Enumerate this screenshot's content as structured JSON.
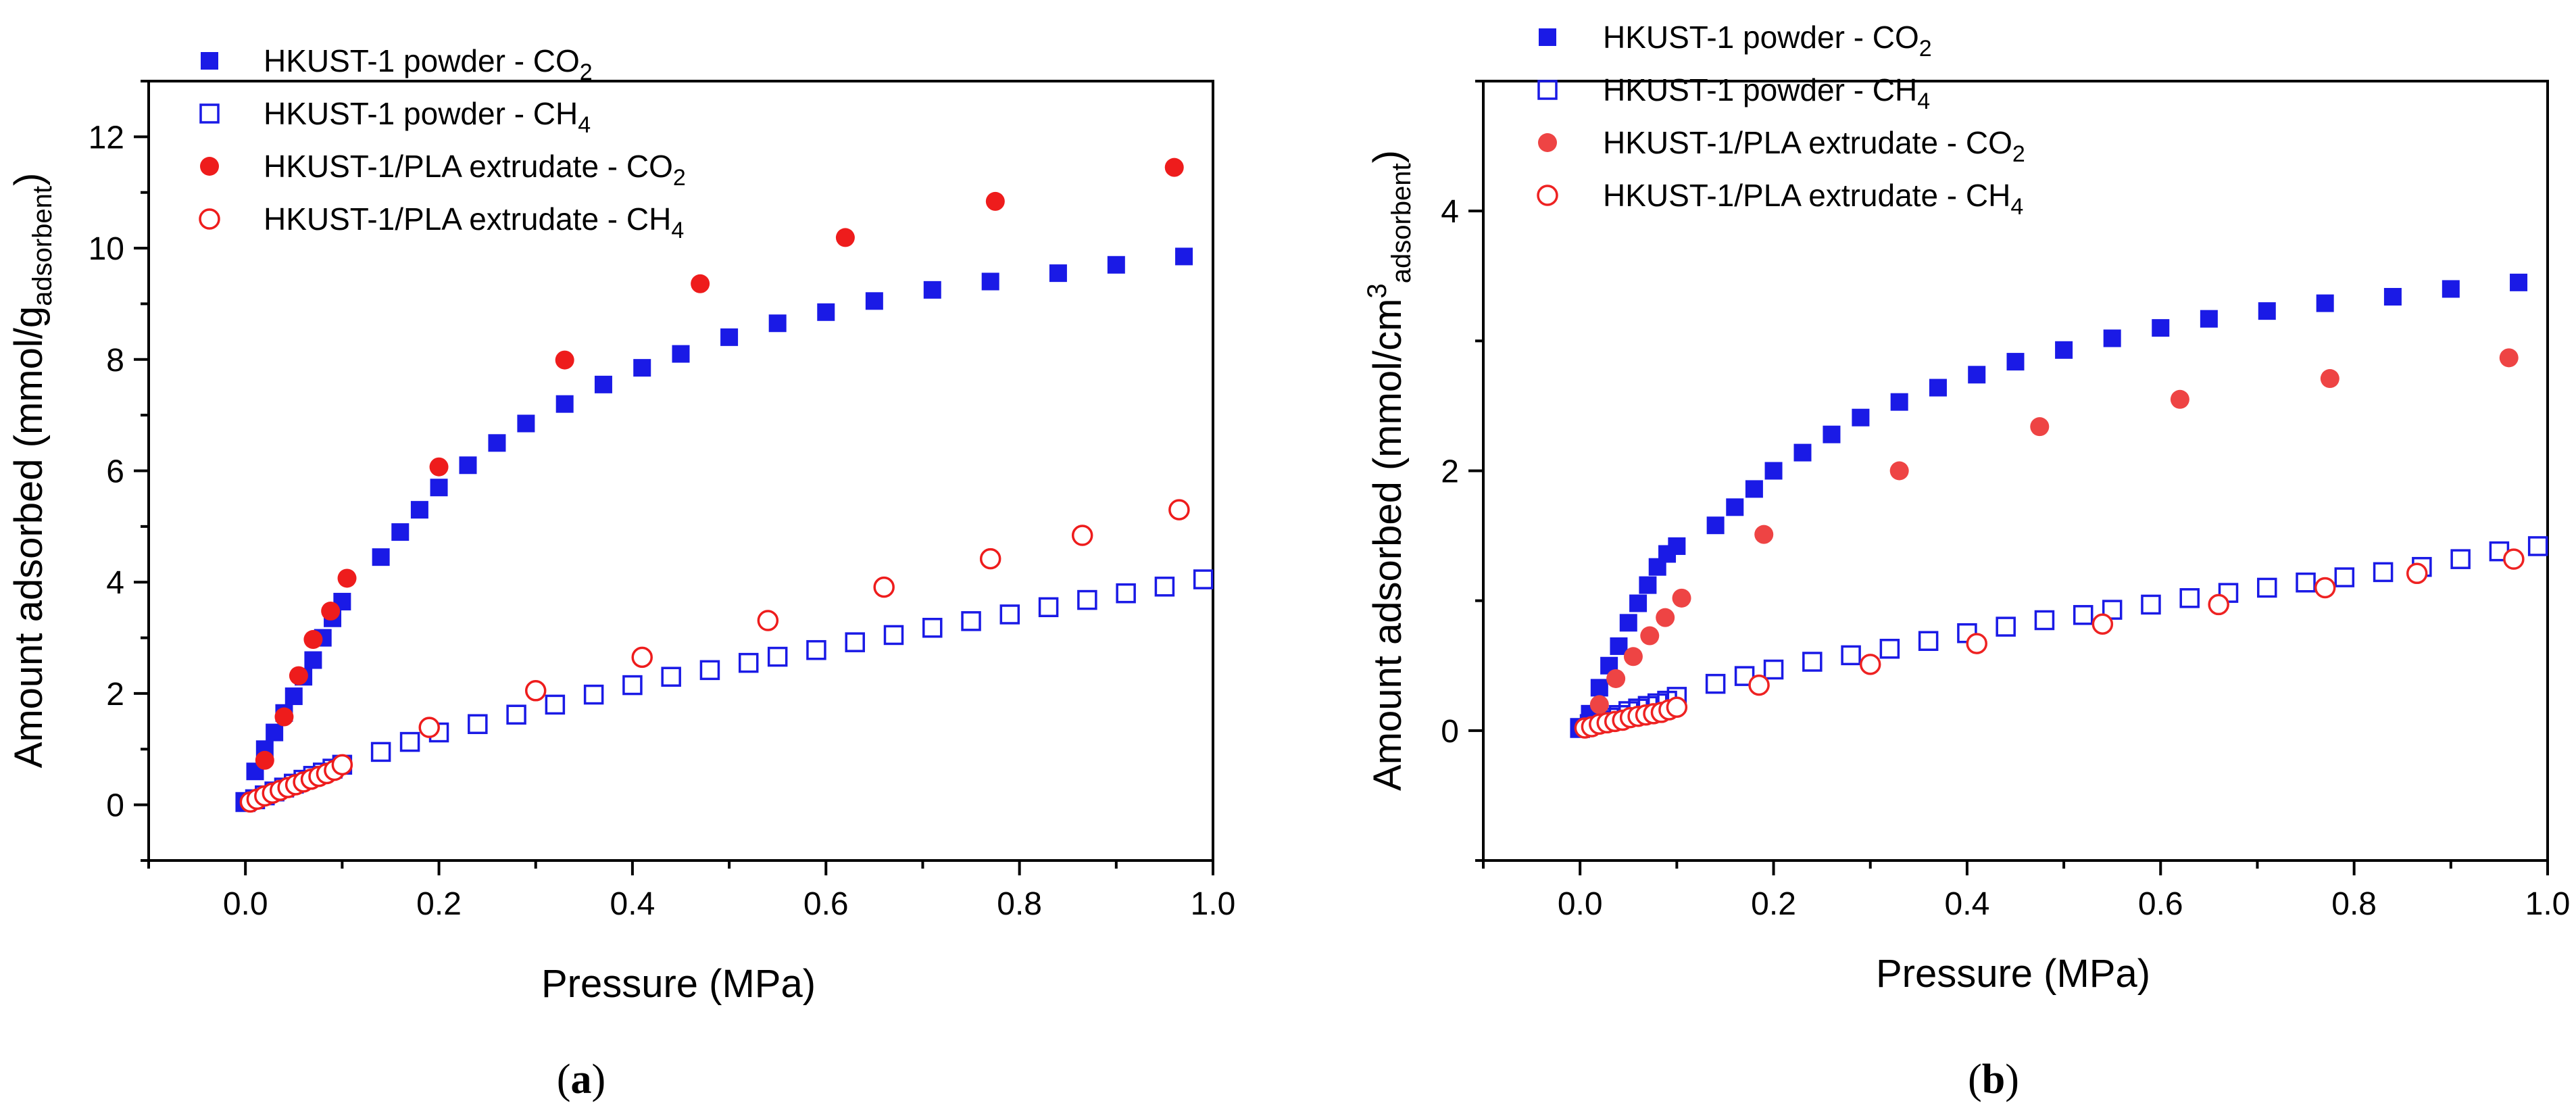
{
  "chart_data": [
    {
      "type": "scatter",
      "panel": "a",
      "xlabel": "Pressure (MPa)",
      "ylabel": {
        "main": "Amount adsorbed (mmol/g",
        "sub": "adsorbent",
        "tail": ")"
      },
      "xlim": [
        -0.1,
        1.0
      ],
      "ylim": [
        -1,
        13
      ],
      "xticks": [
        "0.0",
        "0.2",
        "0.4",
        "0.6",
        "0.8",
        "1.0"
      ],
      "yticks": [
        "0",
        "2",
        "4",
        "6",
        "8",
        "10",
        "12"
      ],
      "grid": false,
      "legend_position": "top-left",
      "series": [
        {
          "name": "HKUST-1 powder - CO",
          "name_sub": "2",
          "marker": "square",
          "fill": "filled",
          "color": "#1a1ae6",
          "x": [
            0.0,
            0.01,
            0.02,
            0.03,
            0.04,
            0.05,
            0.06,
            0.07,
            0.08,
            0.09,
            0.1,
            0.14,
            0.16,
            0.18,
            0.2,
            0.23,
            0.26,
            0.29,
            0.33,
            0.37,
            0.41,
            0.45,
            0.5,
            0.55,
            0.6,
            0.65,
            0.71,
            0.77,
            0.84,
            0.9,
            0.97
          ],
          "y": [
            0.05,
            0.6,
            1.0,
            1.3,
            1.65,
            1.95,
            2.3,
            2.6,
            3.0,
            3.35,
            3.65,
            4.45,
            4.9,
            5.3,
            5.7,
            6.1,
            6.5,
            6.85,
            7.2,
            7.55,
            7.85,
            8.1,
            8.4,
            8.65,
            8.85,
            9.05,
            9.25,
            9.4,
            9.55,
            9.7,
            9.85
          ]
        },
        {
          "name": "HKUST-1 powder - CH",
          "name_sub": "4",
          "marker": "square",
          "fill": "open",
          "color": "#1a1ae6",
          "x": [
            0.0,
            0.01,
            0.02,
            0.03,
            0.04,
            0.05,
            0.06,
            0.07,
            0.08,
            0.09,
            0.1,
            0.14,
            0.17,
            0.2,
            0.24,
            0.28,
            0.32,
            0.36,
            0.4,
            0.44,
            0.48,
            0.52,
            0.55,
            0.59,
            0.63,
            0.67,
            0.71,
            0.75,
            0.79,
            0.83,
            0.87,
            0.91,
            0.95,
            0.99
          ],
          "y": [
            0.05,
            0.1,
            0.17,
            0.24,
            0.31,
            0.38,
            0.45,
            0.52,
            0.58,
            0.65,
            0.72,
            0.95,
            1.13,
            1.3,
            1.45,
            1.62,
            1.8,
            1.98,
            2.15,
            2.3,
            2.42,
            2.55,
            2.66,
            2.78,
            2.92,
            3.05,
            3.18,
            3.3,
            3.42,
            3.55,
            3.68,
            3.8,
            3.92,
            4.05
          ]
        },
        {
          "name": "HKUST-1/PLA extrudate - CO",
          "name_sub": "2",
          "marker": "circle",
          "fill": "filled",
          "color": "#ee1c1c",
          "x": [
            0.02,
            0.04,
            0.055,
            0.07,
            0.088,
            0.105,
            0.2,
            0.33,
            0.47,
            0.62,
            0.775,
            0.96
          ],
          "y": [
            0.8,
            1.58,
            2.32,
            2.97,
            3.48,
            4.07,
            6.07,
            7.99,
            9.36,
            10.19,
            10.84,
            11.45
          ]
        },
        {
          "name": "HKUST-1/PLA extrudate - CH",
          "name_sub": "4",
          "marker": "circle",
          "fill": "open",
          "color": "#ee1c1c",
          "x": [
            0.005,
            0.012,
            0.02,
            0.028,
            0.036,
            0.044,
            0.052,
            0.06,
            0.068,
            0.076,
            0.084,
            0.092,
            0.1,
            0.19,
            0.3,
            0.41,
            0.54,
            0.66,
            0.77,
            0.865,
            0.965
          ],
          "y": [
            0.05,
            0.1,
            0.16,
            0.21,
            0.26,
            0.31,
            0.36,
            0.41,
            0.46,
            0.51,
            0.56,
            0.62,
            0.72,
            1.39,
            2.05,
            2.65,
            3.31,
            3.91,
            4.42,
            4.84,
            5.3
          ]
        }
      ]
    },
    {
      "type": "scatter",
      "panel": "b",
      "xlabel": "Pressure (MPa)",
      "ylabel": {
        "main": "Amount adsorbed (mmol/cm",
        "sup": "3",
        "sub": "adsorbent",
        "tail": ")"
      },
      "xlim": [
        -0.1,
        1.0
      ],
      "ylim": [
        -1,
        5
      ],
      "xticks": [
        "0.0",
        "0.2",
        "0.4",
        "0.6",
        "0.8",
        "1.0"
      ],
      "yticks": [
        "0",
        "2",
        "4"
      ],
      "grid": false,
      "legend_position": "top-left",
      "series": [
        {
          "name": "HKUST-1 powder - CO",
          "name_sub": "2",
          "marker": "square",
          "fill": "filled",
          "color": "#1a1ae6",
          "x": [
            0.0,
            0.01,
            0.02,
            0.03,
            0.04,
            0.05,
            0.06,
            0.07,
            0.08,
            0.09,
            0.1,
            0.14,
            0.16,
            0.18,
            0.2,
            0.23,
            0.26,
            0.29,
            0.33,
            0.37,
            0.41,
            0.45,
            0.5,
            0.55,
            0.6,
            0.65,
            0.71,
            0.77,
            0.84,
            0.9,
            0.97
          ],
          "y": [
            0.02,
            0.13,
            0.33,
            0.5,
            0.65,
            0.83,
            0.98,
            1.12,
            1.26,
            1.36,
            1.42,
            1.58,
            1.72,
            1.86,
            2.0,
            2.14,
            2.28,
            2.41,
            2.53,
            2.64,
            2.74,
            2.84,
            2.93,
            3.02,
            3.1,
            3.17,
            3.23,
            3.29,
            3.34,
            3.4,
            3.45
          ]
        },
        {
          "name": "HKUST-1 powder - CH",
          "name_sub": "4",
          "marker": "square",
          "fill": "open",
          "color": "#1a1ae6",
          "x": [
            0.0,
            0.01,
            0.02,
            0.03,
            0.04,
            0.05,
            0.06,
            0.07,
            0.08,
            0.09,
            0.1,
            0.14,
            0.17,
            0.2,
            0.24,
            0.28,
            0.32,
            0.36,
            0.4,
            0.44,
            0.48,
            0.52,
            0.55,
            0.59,
            0.63,
            0.67,
            0.71,
            0.75,
            0.79,
            0.83,
            0.87,
            0.91,
            0.95,
            0.99
          ],
          "y": [
            0.02,
            0.05,
            0.08,
            0.1,
            0.12,
            0.15,
            0.17,
            0.19,
            0.21,
            0.23,
            0.26,
            0.36,
            0.42,
            0.47,
            0.53,
            0.58,
            0.63,
            0.69,
            0.75,
            0.8,
            0.85,
            0.89,
            0.93,
            0.97,
            1.02,
            1.06,
            1.1,
            1.14,
            1.18,
            1.22,
            1.26,
            1.32,
            1.38,
            1.42
          ]
        },
        {
          "name": "HKUST-1/PLA extrudate - CO",
          "name_sub": "2",
          "marker": "circle",
          "fill": "filled",
          "color": "#ee4444",
          "x": [
            0.02,
            0.037,
            0.055,
            0.072,
            0.088,
            0.105,
            0.19,
            0.33,
            0.475,
            0.62,
            0.775,
            0.96
          ],
          "y": [
            0.2,
            0.4,
            0.57,
            0.73,
            0.87,
            1.02,
            1.51,
            2.0,
            2.34,
            2.55,
            2.71,
            2.87
          ]
        },
        {
          "name": "HKUST-1/PLA extrudate - CH",
          "name_sub": "4",
          "marker": "circle",
          "fill": "open",
          "color": "#ee2222",
          "x": [
            0.005,
            0.012,
            0.02,
            0.028,
            0.036,
            0.044,
            0.052,
            0.06,
            0.068,
            0.076,
            0.084,
            0.092,
            0.1,
            0.185,
            0.3,
            0.41,
            0.54,
            0.66,
            0.77,
            0.865,
            0.965
          ],
          "y": [
            0.02,
            0.03,
            0.05,
            0.06,
            0.07,
            0.08,
            0.1,
            0.11,
            0.12,
            0.13,
            0.14,
            0.16,
            0.18,
            0.35,
            0.51,
            0.67,
            0.82,
            0.97,
            1.1,
            1.21,
            1.32
          ]
        }
      ]
    }
  ],
  "captions": {
    "a": "a",
    "b": "b"
  }
}
